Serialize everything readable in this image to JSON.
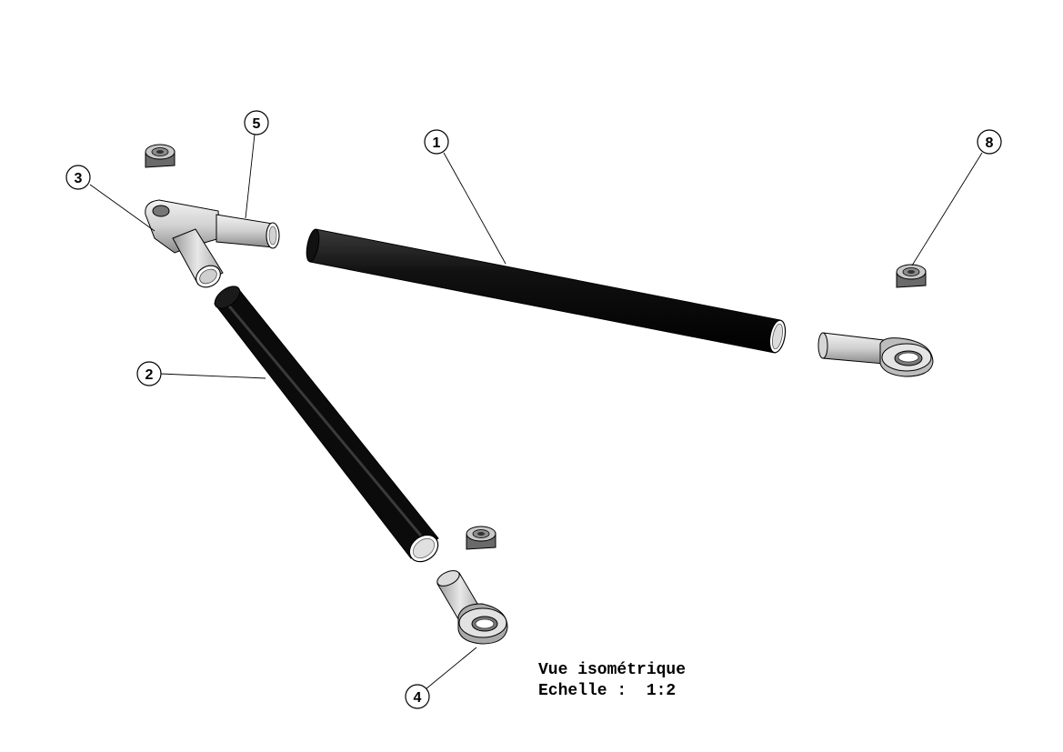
{
  "view": {
    "title": "Vue isométrique",
    "scale_label": "Echelle :",
    "scale_value": "1:2"
  },
  "balloons": [
    "1",
    "2",
    "3",
    "4",
    "5",
    "8"
  ],
  "colors": {
    "tube": "#0d0d0d",
    "metal_light": "#e6e6e6",
    "metal_mid": "#b5b5b5",
    "metal_dark": "#6e6e6e",
    "line": "#000000"
  }
}
